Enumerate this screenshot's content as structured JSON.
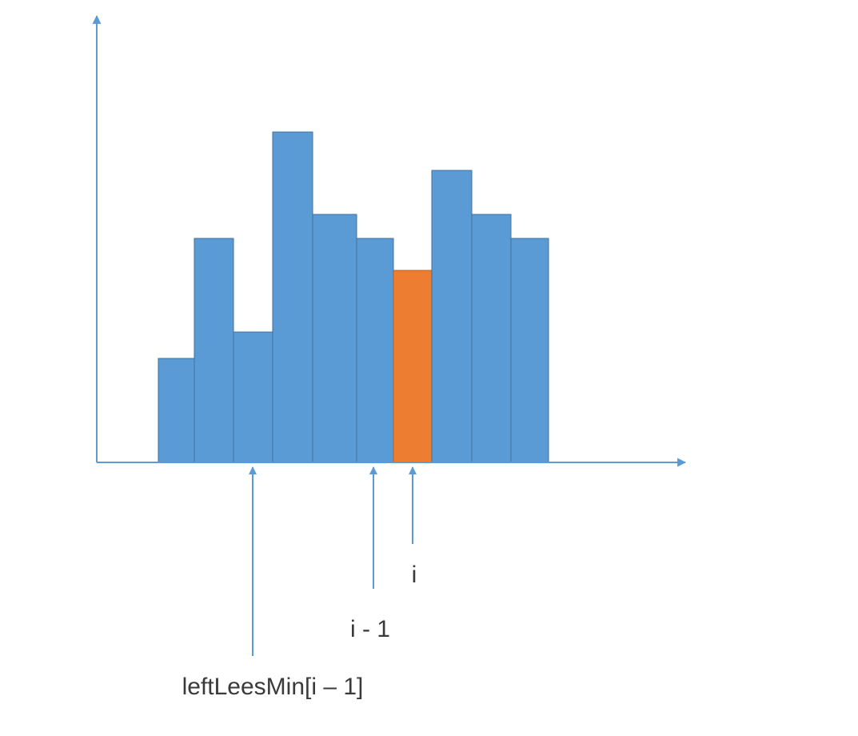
{
  "chart_data": {
    "type": "bar",
    "values": [
      130,
      280,
      163,
      413,
      310,
      280,
      240,
      365,
      310,
      280
    ],
    "highlight_index": 6,
    "colors": {
      "bar": "#5b9bd5",
      "bar_border": "#41719c",
      "highlight": "#ed7d31",
      "highlight_border": "#c55a11",
      "axis": "#5b9bd5",
      "pointer": "#5b9bd5",
      "label": "#3a3a3a"
    }
  },
  "pointers": [
    {
      "label": "leftLeesMin[i – 1]",
      "bar_index": 2
    },
    {
      "label": "i - 1",
      "bar_index": 5
    },
    {
      "label": "i",
      "bar_index": 6
    }
  ]
}
